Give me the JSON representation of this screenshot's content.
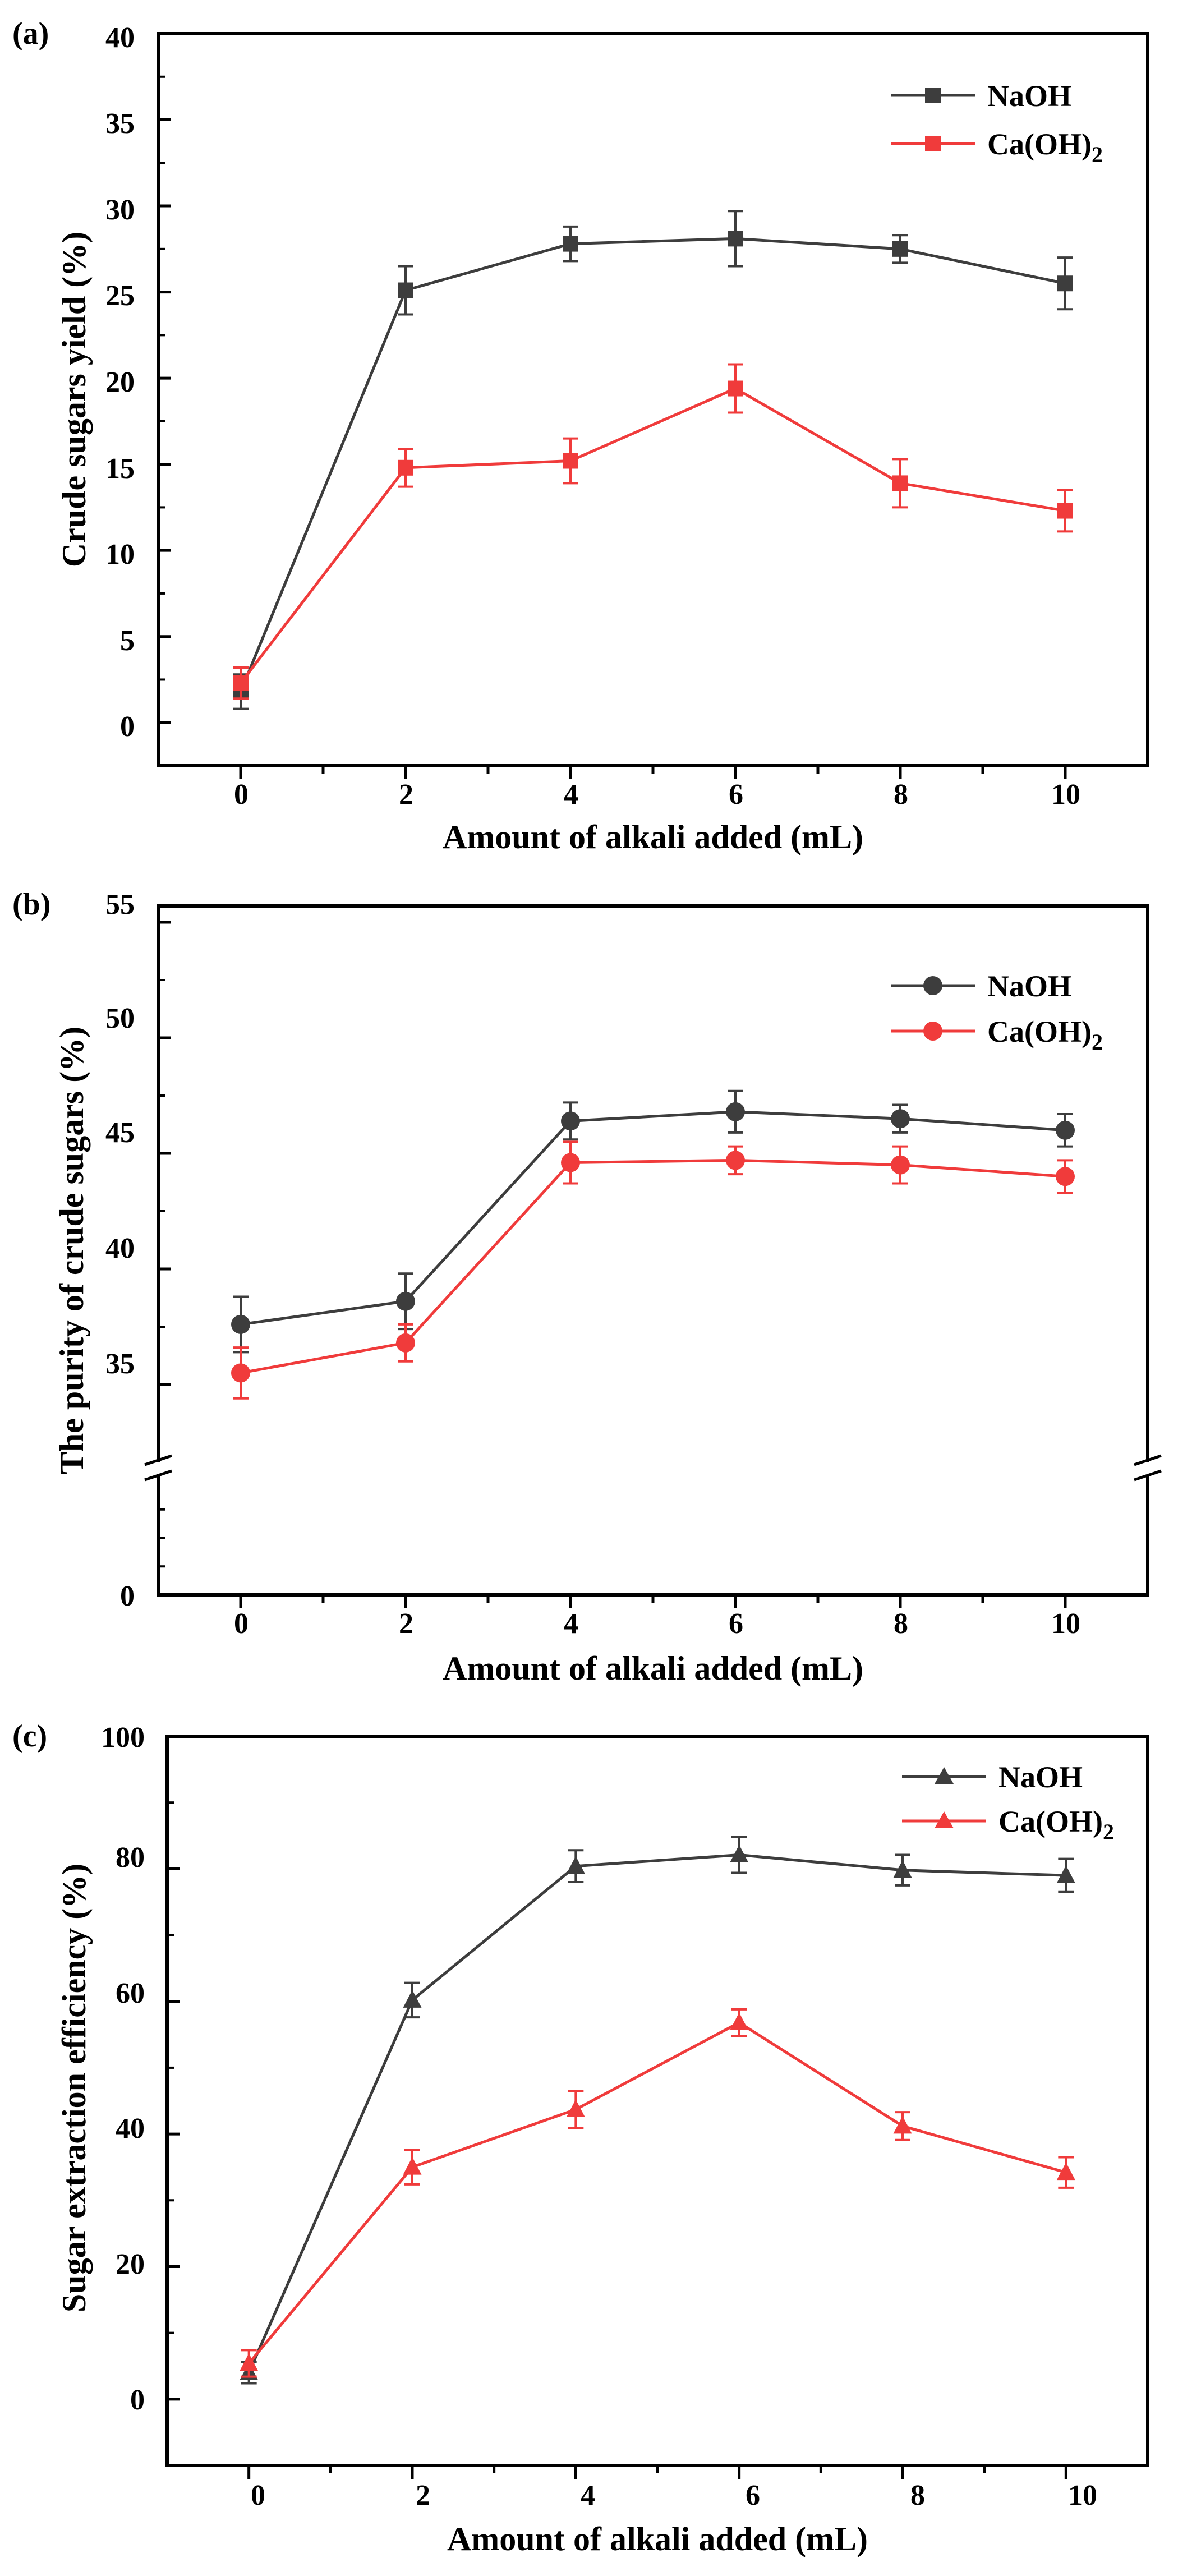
{
  "chart_data": [
    {
      "panel": "(a)",
      "type": "line",
      "marker": "square",
      "xlabel": "Amount of alkali added (mL)",
      "ylabel": "Crude sugars yield (%)",
      "xlim": [
        -1,
        11
      ],
      "ylim": [
        -2.5,
        40
      ],
      "xticks": [
        "0",
        "2",
        "4",
        "6",
        "8",
        "10"
      ],
      "yticks": [
        "0",
        "5",
        "10",
        "15",
        "20",
        "25",
        "30",
        "35",
        "40"
      ],
      "x": [
        0,
        2,
        4,
        6,
        8,
        10
      ],
      "legend_position": "top-right",
      "series": [
        {
          "name": "NaOH",
          "label_main": "NaOH",
          "label_sub": "",
          "color": "#3d3d3d",
          "values": [
            1.8,
            25.1,
            27.8,
            28.1,
            27.5,
            25.5
          ],
          "errors": [
            1.0,
            1.4,
            1.0,
            1.6,
            0.8,
            1.5
          ]
        },
        {
          "name": "Ca(OH)2",
          "label_main": "Ca(OH)",
          "label_sub": "2",
          "color": "#f03b3b",
          "values": [
            2.3,
            14.8,
            15.2,
            19.4,
            13.9,
            12.3
          ],
          "errors": [
            0.9,
            1.1,
            1.3,
            1.4,
            1.4,
            1.2
          ]
        }
      ]
    },
    {
      "panel": "(b)",
      "type": "line",
      "marker": "circle",
      "xlabel": "Amount of alkali added (mL)",
      "ylabel": "The purity of crude sugars (%)",
      "xlim": [
        -1,
        11
      ],
      "ylim": [
        0,
        55
      ],
      "axis_break": "between 0 and 35",
      "xticks": [
        "0",
        "2",
        "4",
        "6",
        "8",
        "10"
      ],
      "yticks": [
        "0",
        "35",
        "40",
        "45",
        "50",
        "55"
      ],
      "x": [
        0,
        2,
        4,
        6,
        8,
        10
      ],
      "legend_position": "top-right",
      "series": [
        {
          "name": "NaOH",
          "label_main": "NaOH",
          "label_sub": "",
          "color": "#3d3d3d",
          "values": [
            37.6,
            38.6,
            46.4,
            46.8,
            46.5,
            46.0
          ],
          "errors": [
            1.2,
            1.2,
            0.8,
            0.9,
            0.6,
            0.7
          ]
        },
        {
          "name": "Ca(OH)2",
          "label_main": "Ca(OH)",
          "label_sub": "2",
          "color": "#f03b3b",
          "values": [
            35.5,
            36.8,
            44.6,
            44.7,
            44.5,
            44.0
          ],
          "errors": [
            1.1,
            0.8,
            0.9,
            0.6,
            0.8,
            0.7
          ]
        }
      ]
    },
    {
      "panel": "(c)",
      "type": "line",
      "marker": "triangle",
      "xlabel": "Amount of alkali added (mL)",
      "ylabel": "Sugar extraction efficiency (%)",
      "xlim": [
        -1,
        11
      ],
      "ylim": [
        -10,
        100
      ],
      "xticks": [
        "0",
        "2",
        "4",
        "6",
        "8",
        "10"
      ],
      "yticks": [
        "0",
        "20",
        "40",
        "60",
        "80",
        "100"
      ],
      "x": [
        0,
        2,
        4,
        6,
        8,
        10
      ],
      "legend_position": "top-right",
      "series": [
        {
          "name": "NaOH",
          "label_main": "NaOH",
          "label_sub": "",
          "color": "#3d3d3d",
          "values": [
            4.0,
            60.2,
            80.4,
            82.1,
            79.8,
            79.0
          ],
          "errors": [
            1.6,
            2.6,
            2.4,
            2.7,
            2.3,
            2.5
          ]
        },
        {
          "name": "Ca(OH)2",
          "label_main": "Ca(OH)",
          "label_sub": "2",
          "color": "#f03b3b",
          "values": [
            5.4,
            35.0,
            43.7,
            56.8,
            41.2,
            34.2
          ],
          "errors": [
            2.0,
            2.6,
            2.8,
            2.0,
            2.1,
            2.3
          ]
        }
      ]
    }
  ]
}
